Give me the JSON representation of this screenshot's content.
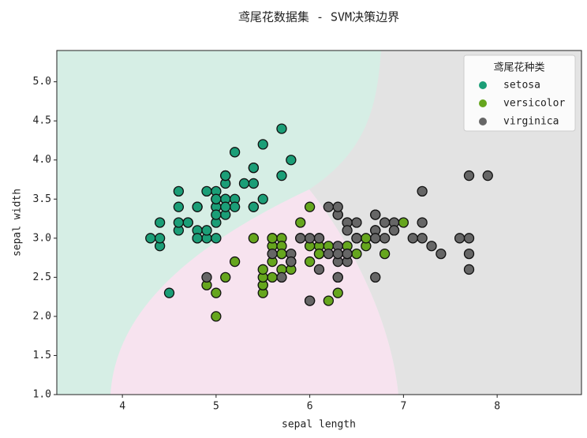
{
  "chart_data": {
    "type": "scatter",
    "title": "鸢尾花数据集 - SVM决策边界",
    "x_label": "sepal length",
    "y_label": "sepal width",
    "legend_title": "鸢尾花种类",
    "legend": "upper right",
    "xlim": [
      3.3,
      8.9
    ],
    "ylim": [
      1.0,
      5.4
    ],
    "xticks": [
      4,
      5,
      6,
      7,
      8
    ],
    "yticks": [
      {
        "value": 1.0,
        "label": "1.0"
      },
      {
        "value": 1.5,
        "label": "1.5"
      },
      {
        "value": 2.0,
        "label": "2.0"
      },
      {
        "value": 2.5,
        "label": "2.5"
      },
      {
        "value": 3.0,
        "label": "3.0"
      },
      {
        "value": 3.5,
        "label": "3.5"
      },
      {
        "value": 4.0,
        "label": "4.0"
      },
      {
        "value": 4.5,
        "label": "4.5"
      },
      {
        "value": 5.0,
        "label": "5.0"
      }
    ],
    "series": [
      {
        "name": "setosa",
        "color": "#1b9e77",
        "x": [
          5.1,
          4.9,
          4.7,
          4.6,
          5.0,
          5.4,
          4.6,
          5.0,
          4.4,
          4.9,
          5.4,
          4.8,
          4.8,
          4.3,
          5.8,
          5.7,
          5.4,
          5.1,
          5.7,
          5.1,
          5.4,
          5.1,
          4.6,
          5.1,
          4.8,
          5.0,
          5.0,
          5.2,
          5.2,
          4.7,
          4.8,
          5.4,
          5.2,
          5.5,
          4.9,
          5.0,
          5.5,
          4.9,
          4.4,
          5.1,
          5.0,
          4.5,
          4.4,
          5.0,
          5.1,
          4.8,
          5.1,
          4.6,
          5.3,
          5.0
        ],
        "values": [
          3.5,
          3.0,
          3.2,
          3.1,
          3.6,
          3.9,
          3.4,
          3.4,
          2.9,
          3.1,
          3.7,
          3.4,
          3.0,
          3.0,
          4.0,
          4.4,
          3.9,
          3.5,
          3.8,
          3.8,
          3.4,
          3.7,
          3.6,
          3.3,
          3.4,
          3.0,
          3.4,
          3.5,
          3.4,
          3.2,
          3.1,
          3.4,
          4.1,
          4.2,
          3.1,
          3.2,
          3.5,
          3.6,
          3.0,
          3.4,
          3.5,
          2.3,
          3.2,
          3.5,
          3.8,
          3.0,
          3.8,
          3.2,
          3.7,
          3.3
        ]
      },
      {
        "name": "versicolor",
        "color": "#66a61e",
        "x": [
          7.0,
          6.4,
          6.9,
          5.5,
          6.5,
          5.7,
          6.3,
          4.9,
          6.6,
          5.2,
          5.0,
          5.9,
          6.0,
          6.1,
          5.6,
          6.7,
          5.6,
          5.8,
          6.2,
          5.6,
          5.9,
          6.1,
          6.3,
          6.1,
          6.4,
          6.6,
          6.8,
          6.7,
          6.0,
          5.7,
          5.5,
          5.5,
          5.8,
          6.0,
          5.4,
          6.0,
          6.7,
          6.3,
          5.6,
          5.5,
          5.5,
          6.1,
          5.8,
          5.0,
          5.6,
          5.7,
          5.7,
          6.2,
          5.1,
          5.7
        ],
        "values": [
          3.2,
          3.2,
          3.1,
          2.3,
          2.8,
          2.8,
          3.3,
          2.4,
          2.9,
          2.7,
          2.0,
          3.0,
          2.2,
          2.9,
          2.9,
          3.1,
          3.0,
          2.7,
          2.2,
          2.5,
          3.2,
          2.8,
          2.5,
          2.8,
          2.9,
          3.0,
          2.8,
          3.0,
          2.9,
          2.6,
          2.4,
          2.4,
          2.7,
          2.7,
          3.0,
          3.4,
          3.1,
          2.3,
          3.0,
          2.5,
          2.6,
          3.0,
          2.6,
          2.3,
          2.7,
          3.0,
          2.9,
          2.9,
          2.5,
          2.8
        ]
      },
      {
        "name": "virginica",
        "color": "#666666",
        "x": [
          6.3,
          5.8,
          7.1,
          6.3,
          6.5,
          7.6,
          4.9,
          7.3,
          6.7,
          7.2,
          6.5,
          6.4,
          6.8,
          5.7,
          5.8,
          6.4,
          6.5,
          7.7,
          7.7,
          6.0,
          6.9,
          5.6,
          7.7,
          6.3,
          6.7,
          7.2,
          6.2,
          6.1,
          6.4,
          7.2,
          7.4,
          7.9,
          6.4,
          6.3,
          6.1,
          7.7,
          6.3,
          6.4,
          6.0,
          6.9,
          6.7,
          6.9,
          5.8,
          6.8,
          6.7,
          6.7,
          6.3,
          6.5,
          6.2,
          5.9
        ],
        "values": [
          3.3,
          2.7,
          3.0,
          2.9,
          3.0,
          3.0,
          2.5,
          2.9,
          2.5,
          3.6,
          3.2,
          2.7,
          3.0,
          2.5,
          2.8,
          3.2,
          3.0,
          3.8,
          2.6,
          2.2,
          3.2,
          2.8,
          2.8,
          2.7,
          3.3,
          3.2,
          2.8,
          3.0,
          2.8,
          3.0,
          2.8,
          3.8,
          2.8,
          2.8,
          2.6,
          3.0,
          3.4,
          3.1,
          3.0,
          3.1,
          3.1,
          3.1,
          2.7,
          3.2,
          3.3,
          3.0,
          2.5,
          3.0,
          3.4,
          3.0
        ]
      }
    ]
  }
}
